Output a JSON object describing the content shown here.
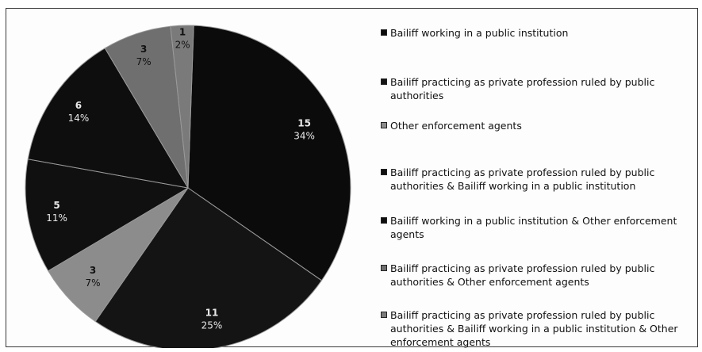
{
  "chart_data": {
    "type": "pie",
    "title": "",
    "slices": [
      {
        "name": "Bailiff working in a public institution",
        "value": 15,
        "percent": "34%",
        "color": "#0b0b0b"
      },
      {
        "name": "Bailiff practicing as private profession ruled by public authorities",
        "value": 11,
        "percent": "25%",
        "color": "#141414"
      },
      {
        "name": "Other enforcement agents",
        "value": 3,
        "percent": "7%",
        "color": "#8c8c8c"
      },
      {
        "name": "Bailiff practicing as private profession ruled by public authorities & Bailiff working in a public institution",
        "value": 5,
        "percent": "11%",
        "color": "#101010"
      },
      {
        "name": "Bailiff working in a public institution & Other enforcement agents",
        "value": 6,
        "percent": "14%",
        "color": "#0e0e0e"
      },
      {
        "name": "Bailiff practicing as private profession ruled by public authorities & Other enforcement agents",
        "value": 3,
        "percent": "7%",
        "color": "#6f6f6f"
      },
      {
        "name": "Bailiff practicing as private profession ruled by public authorities & Bailiff working in a public institution & Other enforcement agents",
        "value": 1,
        "percent": "2%",
        "color": "#7a7a7a"
      }
    ],
    "legend_position": "right"
  }
}
